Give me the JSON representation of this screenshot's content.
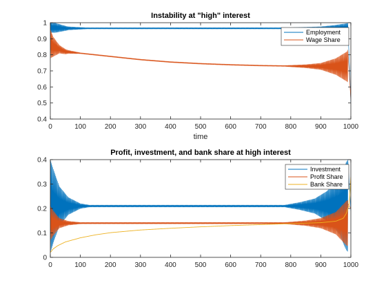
{
  "chart_data": [
    {
      "type": "line",
      "title": "Instability at \"high\" interest",
      "xlabel": "time",
      "ylabel": "",
      "xlim": [
        0,
        1000
      ],
      "ylim": [
        0.4,
        1.0
      ],
      "xticks": [
        0,
        100,
        200,
        300,
        400,
        500,
        600,
        700,
        800,
        900,
        1000
      ],
      "yticks": [
        0.4,
        0.5,
        0.6,
        0.7,
        0.8,
        0.9,
        1.0
      ],
      "ytick_labels": [
        "0.4",
        "0.5",
        "0.6",
        "0.7",
        "0.8",
        "0.9",
        "1"
      ],
      "grid": false,
      "legend": "top-right",
      "series": [
        {
          "name": "Employment",
          "color": "#0072BD",
          "oscillating": true,
          "center": [
            [
              0,
              0.97
            ],
            [
              50,
              0.965
            ],
            [
              200,
              0.965
            ],
            [
              500,
              0.965
            ],
            [
              800,
              0.965
            ],
            [
              950,
              0.965
            ],
            [
              1000,
              0.965
            ]
          ],
          "amplitude": [
            [
              0,
              0.03
            ],
            [
              15,
              0.03
            ],
            [
              60,
              0.01
            ],
            [
              120,
              0.004
            ],
            [
              800,
              0.004
            ],
            [
              900,
              0.01
            ],
            [
              950,
              0.02
            ],
            [
              985,
              0.03
            ],
            [
              1000,
              0.035
            ]
          ],
          "endpoint": [
            [
              990,
              0.99
            ],
            [
              1000,
              0.5
            ]
          ]
        },
        {
          "name": "Wage Share",
          "color": "#D95319",
          "oscillating": true,
          "center": [
            [
              0,
              0.87
            ],
            [
              10,
              0.85
            ],
            [
              50,
              0.82
            ],
            [
              100,
              0.81
            ],
            [
              200,
              0.79
            ],
            [
              300,
              0.77
            ],
            [
              400,
              0.755
            ],
            [
              500,
              0.745
            ],
            [
              600,
              0.738
            ],
            [
              700,
              0.733
            ],
            [
              800,
              0.73
            ],
            [
              900,
              0.728
            ],
            [
              950,
              0.727
            ],
            [
              1000,
              0.727
            ]
          ],
          "amplitude": [
            [
              0,
              0.09
            ],
            [
              10,
              0.06
            ],
            [
              30,
              0.025
            ],
            [
              60,
              0.01
            ],
            [
              100,
              0.003
            ],
            [
              780,
              0.003
            ],
            [
              850,
              0.01
            ],
            [
              900,
              0.02
            ],
            [
              950,
              0.05
            ],
            [
              985,
              0.09
            ],
            [
              1000,
              0.11
            ]
          ],
          "endpoint": [
            [
              990,
              0.83
            ],
            [
              1000,
              0.52
            ]
          ]
        }
      ]
    },
    {
      "type": "line",
      "title": "Profit, investment, and bank share at high interest",
      "xlabel": "",
      "ylabel": "",
      "xlim": [
        0,
        1000
      ],
      "ylim": [
        0,
        0.4
      ],
      "xticks": [
        0,
        100,
        200,
        300,
        400,
        500,
        600,
        700,
        800,
        900,
        1000
      ],
      "yticks": [
        0,
        0.1,
        0.2,
        0.3,
        0.4
      ],
      "ytick_labels": [
        "0",
        "0.1",
        "0.2",
        "0.3",
        "0.4"
      ],
      "grid": false,
      "legend": "top-right",
      "series": [
        {
          "name": "Investment",
          "color": "#0072BD",
          "oscillating": true,
          "center": [
            [
              0,
              0.21
            ],
            [
              1000,
              0.21
            ]
          ],
          "amplitude": [
            [
              0,
              0.19
            ],
            [
              10,
              0.15
            ],
            [
              30,
              0.08
            ],
            [
              60,
              0.035
            ],
            [
              100,
              0.01
            ],
            [
              130,
              0.004
            ],
            [
              780,
              0.004
            ],
            [
              830,
              0.015
            ],
            [
              880,
              0.03
            ],
            [
              920,
              0.06
            ],
            [
              960,
              0.11
            ],
            [
              985,
              0.18
            ],
            [
              1000,
              0.2
            ]
          ],
          "endpoint": [
            [
              990,
              0.4
            ],
            [
              1000,
              0.19
            ]
          ]
        },
        {
          "name": "Profit Share",
          "color": "#D95319",
          "oscillating": true,
          "center": [
            [
              0,
              0.14
            ],
            [
              1000,
              0.14
            ]
          ],
          "amplitude": [
            [
              0,
              0.07
            ],
            [
              10,
              0.05
            ],
            [
              30,
              0.02
            ],
            [
              60,
              0.008
            ],
            [
              100,
              0.003
            ],
            [
              780,
              0.003
            ],
            [
              850,
              0.01
            ],
            [
              900,
              0.02
            ],
            [
              950,
              0.045
            ],
            [
              985,
              0.09
            ],
            [
              1000,
              0.1
            ]
          ],
          "endpoint": [
            [
              990,
              0.22
            ],
            [
              1000,
              0.2
            ]
          ]
        },
        {
          "name": "Bank Share",
          "color": "#EDB120",
          "oscillating": false,
          "points": [
            [
              0,
              0.02
            ],
            [
              10,
              0.035
            ],
            [
              25,
              0.048
            ],
            [
              50,
              0.063
            ],
            [
              100,
              0.08
            ],
            [
              150,
              0.092
            ],
            [
              200,
              0.101
            ],
            [
              300,
              0.112
            ],
            [
              400,
              0.119
            ],
            [
              500,
              0.125
            ],
            [
              600,
              0.13
            ],
            [
              700,
              0.134
            ],
            [
              800,
              0.138
            ],
            [
              900,
              0.142
            ],
            [
              950,
              0.148
            ],
            [
              975,
              0.16
            ],
            [
              985,
              0.18
            ],
            [
              995,
              0.22
            ],
            [
              1000,
              0.33
            ]
          ]
        }
      ]
    }
  ]
}
